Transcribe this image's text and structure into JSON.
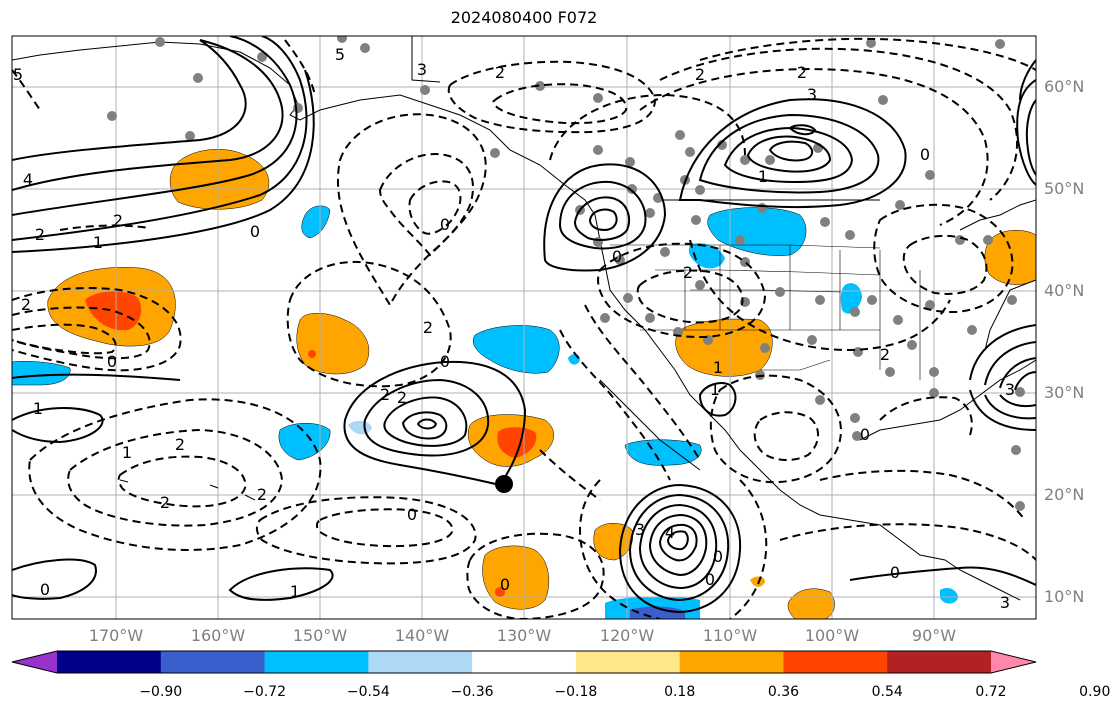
{
  "title": "2024080400 F072",
  "lat_labels": [
    "60°N",
    "50°N",
    "40°N",
    "30°N",
    "20°N",
    "10°N"
  ],
  "lon_labels": [
    "170°W",
    "160°W",
    "150°W",
    "140°W",
    "130°W",
    "120°W",
    "110°W",
    "100°W",
    "90°W"
  ],
  "contour_labels": [
    "5",
    "4",
    "2",
    "1",
    "2",
    "2",
    "1",
    "0",
    "0",
    "2",
    "2",
    "1",
    "2",
    "0",
    "1",
    "2",
    "2",
    "0",
    "0",
    "2",
    "0",
    "5",
    "3",
    "2",
    "2",
    "2",
    "1",
    "3",
    "3",
    "0",
    "2",
    "0",
    "1",
    "4",
    "3",
    "0",
    "0",
    "0",
    "0",
    "1",
    "2",
    "0",
    "3"
  ],
  "colorbar": {
    "ticks": [
      "−0.90",
      "−0.72",
      "−0.54",
      "−0.36",
      "−0.18",
      "0.18",
      "0.36",
      "0.54",
      "0.72",
      "0.90"
    ],
    "colors": [
      "#9932cc",
      "#00008b",
      "#3a5fcd",
      "#00bfff",
      "#add8f6",
      "#ffffff",
      "#ffe78a",
      "#ffa500",
      "#ff4500",
      "#b22222",
      "#ff88aa"
    ]
  },
  "shading_colors": {
    "light_orange": "#ffa500",
    "red_orange": "#ff4500",
    "cyan": "#00bfff",
    "blue": "#3a5fcd"
  },
  "marker": {
    "label": "storm-center-marker"
  }
}
